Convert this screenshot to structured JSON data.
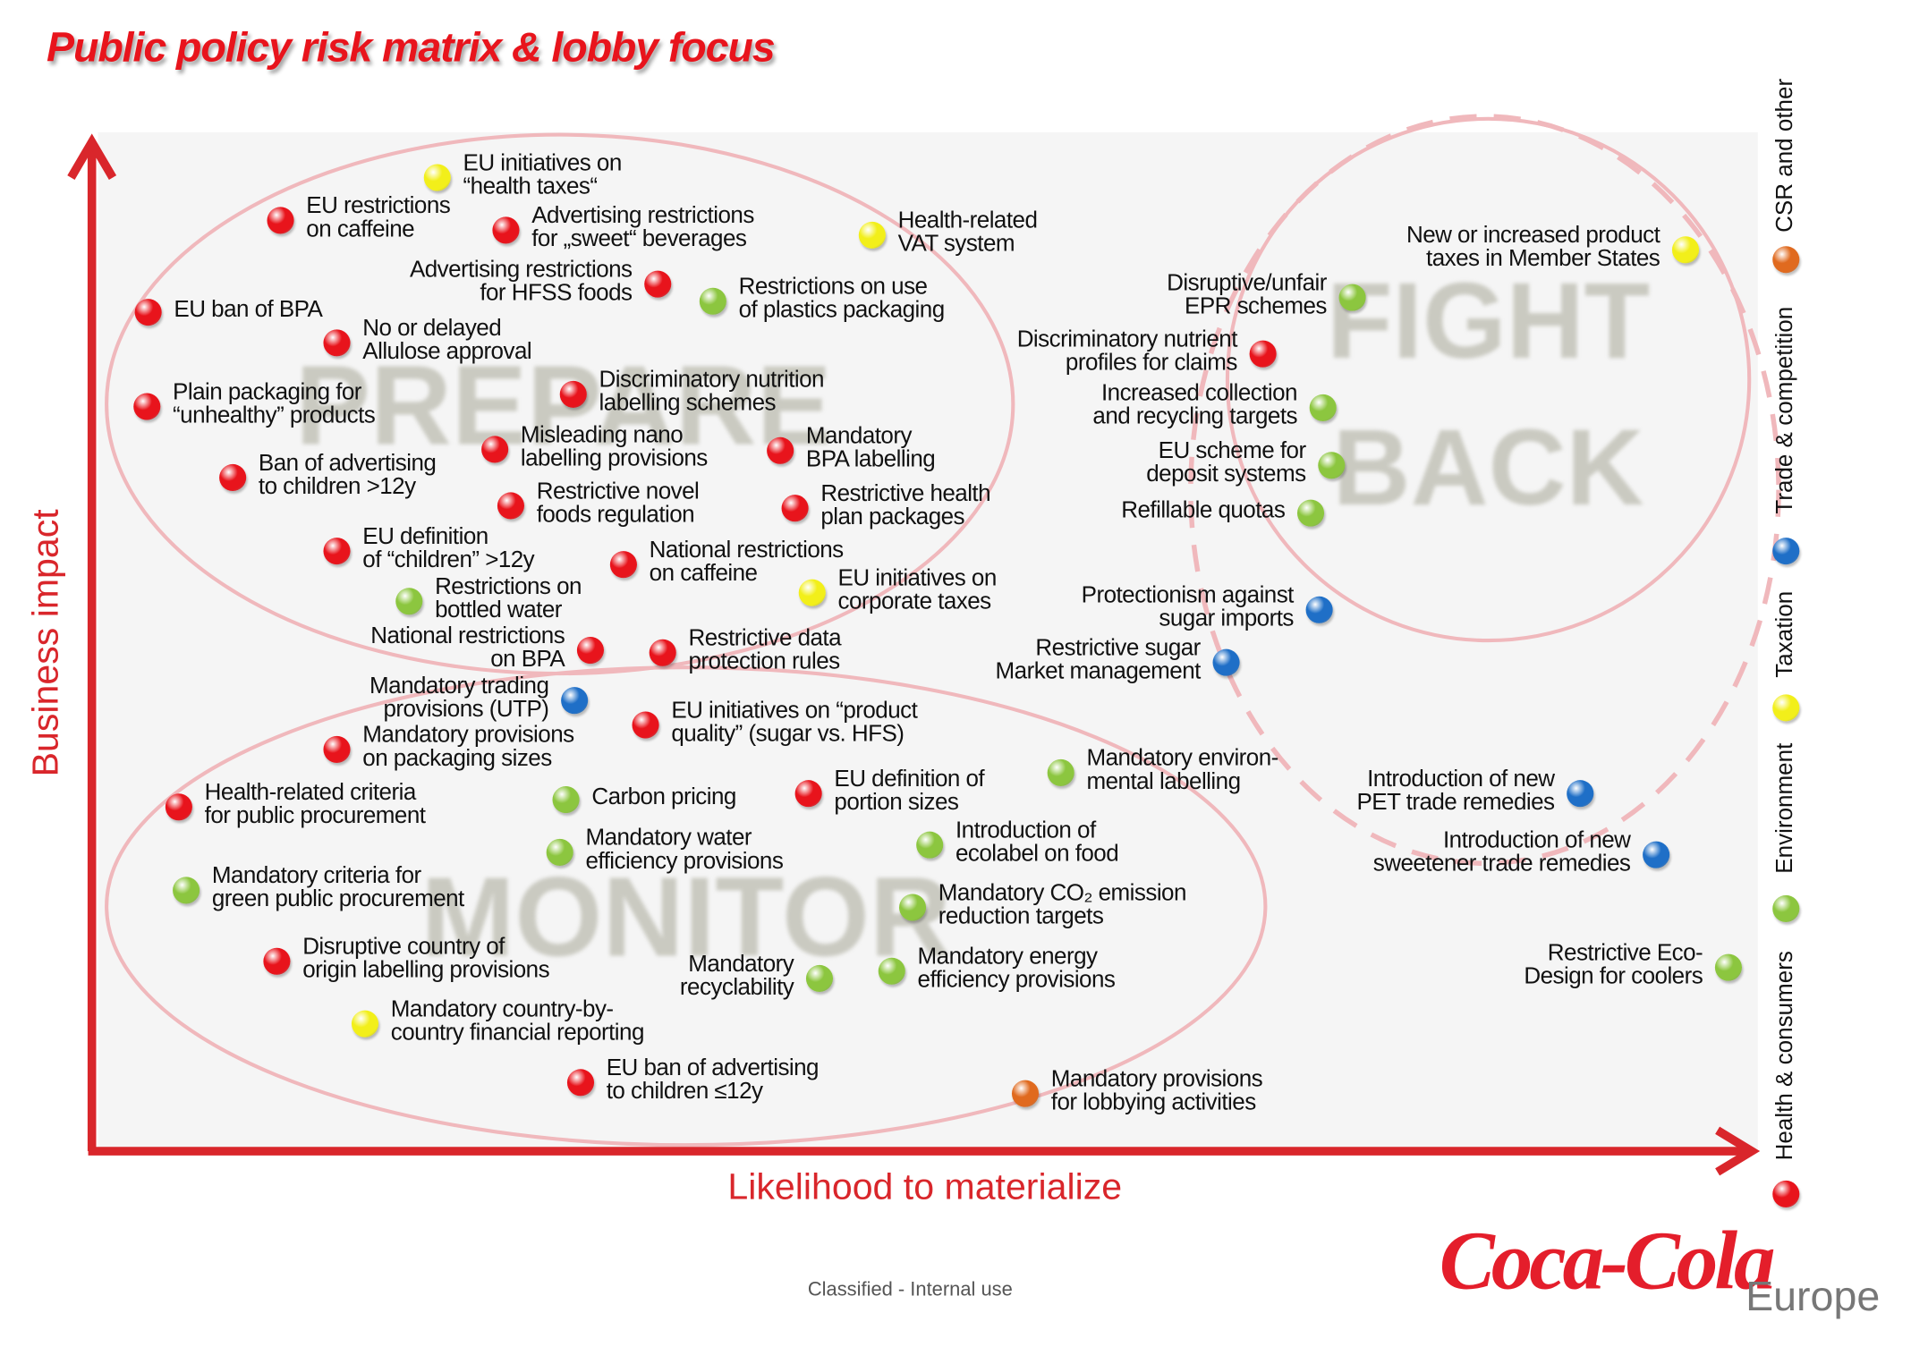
{
  "title": "Public policy risk matrix & lobby focus",
  "axes": {
    "y_label": "Business impact",
    "x_label": "Likelihood to materialize"
  },
  "zones": {
    "prepare": "PREPARE",
    "fight_1": "FIGHT",
    "fight_2": "BACK",
    "monitor": "MONITOR"
  },
  "legend": [
    {
      "key": "health",
      "label": "Health & consumers",
      "color": "#e8141c"
    },
    {
      "key": "env",
      "label": "Environment",
      "color": "#8cc63f"
    },
    {
      "key": "tax",
      "label": "Taxation",
      "color": "#f2ef1a"
    },
    {
      "key": "trade",
      "label": "Trade & competition",
      "color": "#1f6fc7"
    },
    {
      "key": "csr",
      "label": "CSR and other",
      "color": "#e06a1f"
    }
  ],
  "items": [
    {
      "cat": "tax",
      "lines": [
        "EU initiatives on",
        "“health taxes“"
      ]
    },
    {
      "cat": "health",
      "lines": [
        "EU restrictions",
        "on caffeine"
      ]
    },
    {
      "cat": "health",
      "lines": [
        "Advertising restrictions",
        "for „sweet“ beverages"
      ]
    },
    {
      "cat": "tax",
      "lines": [
        "Health-related",
        "VAT system"
      ]
    },
    {
      "cat": "health",
      "lines": [
        "Advertising restrictions",
        "for HFSS foods"
      ]
    },
    {
      "cat": "env",
      "lines": [
        "Restrictions on use",
        "of plastics packaging"
      ]
    },
    {
      "cat": "health",
      "lines": [
        "EU ban of BPA"
      ]
    },
    {
      "cat": "health",
      "lines": [
        "No or delayed",
        "Allulose approval"
      ]
    },
    {
      "cat": "health",
      "lines": [
        "Plain packaging for",
        "“unhealthy” products"
      ]
    },
    {
      "cat": "health",
      "lines": [
        "Discriminatory nutrition",
        "labelling schemes"
      ]
    },
    {
      "cat": "health",
      "lines": [
        "Misleading nano",
        "labelling provisions"
      ]
    },
    {
      "cat": "health",
      "lines": [
        "Mandatory",
        "BPA labelling"
      ]
    },
    {
      "cat": "health",
      "lines": [
        "Ban of advertising",
        "to children >12y"
      ]
    },
    {
      "cat": "health",
      "lines": [
        "Restrictive novel",
        "foods regulation"
      ]
    },
    {
      "cat": "health",
      "lines": [
        "Restrictive health",
        "plan packages"
      ]
    },
    {
      "cat": "health",
      "lines": [
        "EU definition",
        "of “children” >12y"
      ]
    },
    {
      "cat": "health",
      "lines": [
        "National restrictions",
        "on caffeine"
      ]
    },
    {
      "cat": "tax",
      "lines": [
        "EU initiatives on",
        "corporate taxes"
      ]
    },
    {
      "cat": "env",
      "lines": [
        "Restrictions on",
        "bottled water"
      ]
    },
    {
      "cat": "health",
      "lines": [
        "National restrictions",
        "on BPA"
      ]
    },
    {
      "cat": "health",
      "lines": [
        "Restrictive data",
        "protection rules"
      ]
    },
    {
      "cat": "trade",
      "lines": [
        "Mandatory trading",
        "provisions (UTP)"
      ]
    },
    {
      "cat": "health",
      "lines": [
        "EU initiatives on “product",
        "quality” (sugar vs. HFS)"
      ]
    },
    {
      "cat": "health",
      "lines": [
        "Mandatory provisions",
        "on packaging sizes"
      ]
    },
    {
      "cat": "health",
      "lines": [
        "Health-related criteria",
        "for public procurement"
      ]
    },
    {
      "cat": "env",
      "lines": [
        "Carbon pricing"
      ]
    },
    {
      "cat": "health",
      "lines": [
        "EU definition of",
        "portion sizes"
      ]
    },
    {
      "cat": "env",
      "lines": [
        "Mandatory environ-",
        "mental labelling"
      ]
    },
    {
      "cat": "env",
      "lines": [
        "Mandatory water",
        "efficiency provisions"
      ]
    },
    {
      "cat": "env",
      "lines": [
        "Introduction of",
        "ecolabel on food"
      ]
    },
    {
      "cat": "env",
      "lines": [
        "Mandatory criteria for",
        "green public procurement"
      ]
    },
    {
      "cat": "env",
      "lines": [
        "Mandatory CO₂ emission",
        "reduction targets"
      ]
    },
    {
      "cat": "health",
      "lines": [
        "Disruptive country of",
        "origin labelling provisions"
      ]
    },
    {
      "cat": "env",
      "lines": [
        "Mandatory",
        "recyclability"
      ]
    },
    {
      "cat": "env",
      "lines": [
        "Mandatory energy",
        "efficiency provisions"
      ]
    },
    {
      "cat": "tax",
      "lines": [
        "Mandatory country-by-",
        "country financial reporting"
      ]
    },
    {
      "cat": "health",
      "lines": [
        "EU ban of advertising",
        "to children ≤12y"
      ]
    },
    {
      "cat": "csr",
      "lines": [
        "Mandatory provisions",
        "for lobbying activities"
      ]
    },
    {
      "cat": "tax",
      "lines": [
        "New or increased product",
        "taxes in Member States"
      ]
    },
    {
      "cat": "env",
      "lines": [
        "Disruptive/unfair",
        "EPR schemes"
      ]
    },
    {
      "cat": "health",
      "lines": [
        "Discriminatory nutrient",
        "profiles for claims"
      ]
    },
    {
      "cat": "env",
      "lines": [
        "Increased collection",
        "and recycling targets"
      ]
    },
    {
      "cat": "env",
      "lines": [
        "EU scheme for",
        "deposit systems"
      ]
    },
    {
      "cat": "env",
      "lines": [
        "Refillable quotas"
      ]
    },
    {
      "cat": "trade",
      "lines": [
        "Protectionism against",
        "sugar imports"
      ]
    },
    {
      "cat": "trade",
      "lines": [
        "Restrictive sugar",
        "Market management"
      ]
    },
    {
      "cat": "trade",
      "lines": [
        "Introduction of new",
        "PET trade remedies"
      ]
    },
    {
      "cat": "trade",
      "lines": [
        "Introduction of new",
        "sweetener trade remedies"
      ]
    },
    {
      "cat": "env",
      "lines": [
        "Restrictive Eco-",
        "Design for coolers"
      ]
    }
  ],
  "footer": "Classified - Internal use",
  "logo": {
    "brand": "Coca-Cola",
    "region": "Europe"
  }
}
